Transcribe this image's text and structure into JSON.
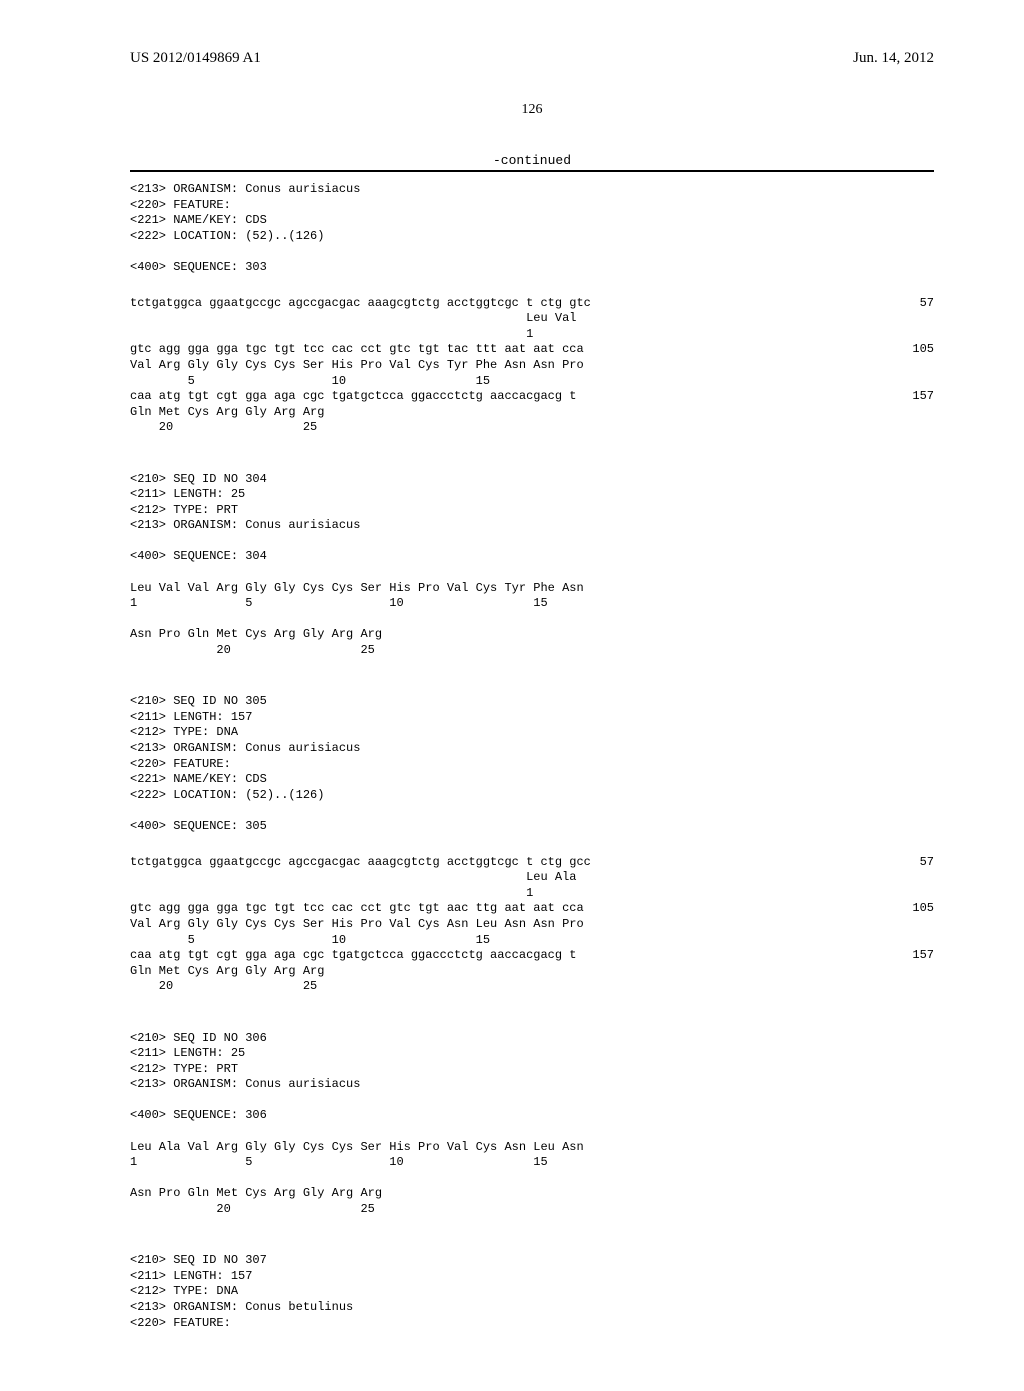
{
  "header": {
    "pub_number": "US 2012/0149869 A1",
    "pub_date": "Jun. 14, 2012"
  },
  "page_number": "126",
  "continued_label": "-continued",
  "blocks": [
    {
      "lines": [
        "<213> ORGANISM: Conus aurisiacus",
        "<220> FEATURE:",
        "<221> NAME/KEY: CDS",
        "<222> LOCATION: (52)..(126)",
        "",
        "<400> SEQUENCE: 303",
        ""
      ]
    },
    {
      "seq_lines": [
        {
          "text": "tctgatggca ggaatgccgc agccgacgac aaagcgtctg acctggtcgc t ctg gtc",
          "num": "57"
        },
        {
          "text": "                                                       Leu Val",
          "num": ""
        },
        {
          "text": "                                                       1",
          "num": ""
        },
        {
          "text": "",
          "num": ""
        },
        {
          "text": "gtc agg gga gga tgc tgt tcc cac cct gtc tgt tac ttt aat aat cca",
          "num": "105"
        },
        {
          "text": "Val Arg Gly Gly Cys Cys Ser His Pro Val Cys Tyr Phe Asn Asn Pro",
          "num": ""
        },
        {
          "text": "        5                   10                  15",
          "num": ""
        },
        {
          "text": "",
          "num": ""
        },
        {
          "text": "caa atg tgt cgt gga aga cgc tgatgctcca ggaccctctg aaccacgacg t",
          "num": "157"
        },
        {
          "text": "Gln Met Cys Arg Gly Arg Arg",
          "num": ""
        },
        {
          "text": "    20                  25",
          "num": ""
        }
      ]
    },
    {
      "lines": [
        "",
        "<210> SEQ ID NO 304",
        "<211> LENGTH: 25",
        "<212> TYPE: PRT",
        "<213> ORGANISM: Conus aurisiacus",
        "",
        "<400> SEQUENCE: 304",
        "",
        "Leu Val Val Arg Gly Gly Cys Cys Ser His Pro Val Cys Tyr Phe Asn",
        "1               5                   10                  15",
        "",
        "Asn Pro Gln Met Cys Arg Gly Arg Arg",
        "            20                  25",
        ""
      ]
    },
    {
      "lines": [
        "",
        "<210> SEQ ID NO 305",
        "<211> LENGTH: 157",
        "<212> TYPE: DNA",
        "<213> ORGANISM: Conus aurisiacus",
        "<220> FEATURE:",
        "<221> NAME/KEY: CDS",
        "<222> LOCATION: (52)..(126)",
        "",
        "<400> SEQUENCE: 305",
        ""
      ]
    },
    {
      "seq_lines": [
        {
          "text": "tctgatggca ggaatgccgc agccgacgac aaagcgtctg acctggtcgc t ctg gcc",
          "num": "57"
        },
        {
          "text": "                                                       Leu Ala",
          "num": ""
        },
        {
          "text": "                                                       1",
          "num": ""
        },
        {
          "text": "",
          "num": ""
        },
        {
          "text": "gtc agg gga gga tgc tgt tcc cac cct gtc tgt aac ttg aat aat cca",
          "num": "105"
        },
        {
          "text": "Val Arg Gly Gly Cys Cys Ser His Pro Val Cys Asn Leu Asn Asn Pro",
          "num": ""
        },
        {
          "text": "        5                   10                  15",
          "num": ""
        },
        {
          "text": "",
          "num": ""
        },
        {
          "text": "caa atg tgt cgt gga aga cgc tgatgctcca ggaccctctg aaccacgacg t",
          "num": "157"
        },
        {
          "text": "Gln Met Cys Arg Gly Arg Arg",
          "num": ""
        },
        {
          "text": "    20                  25",
          "num": ""
        }
      ]
    },
    {
      "lines": [
        "",
        "<210> SEQ ID NO 306",
        "<211> LENGTH: 25",
        "<212> TYPE: PRT",
        "<213> ORGANISM: Conus aurisiacus",
        "",
        "<400> SEQUENCE: 306",
        "",
        "Leu Ala Val Arg Gly Gly Cys Cys Ser His Pro Val Cys Asn Leu Asn",
        "1               5                   10                  15",
        "",
        "Asn Pro Gln Met Cys Arg Gly Arg Arg",
        "            20                  25",
        ""
      ]
    },
    {
      "lines": [
        "",
        "<210> SEQ ID NO 307",
        "<211> LENGTH: 157",
        "<212> TYPE: DNA",
        "<213> ORGANISM: Conus betulinus",
        "<220> FEATURE:"
      ]
    }
  ]
}
